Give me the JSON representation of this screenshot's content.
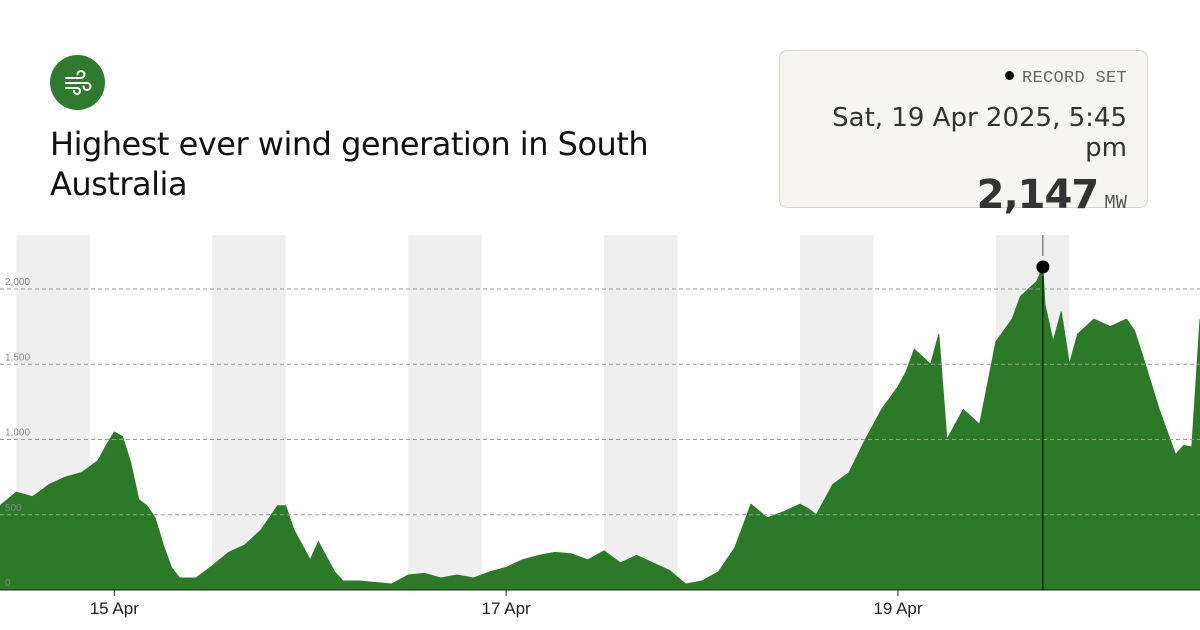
{
  "header": {
    "icon": "wind-icon",
    "icon_bg_color": "#2e7a2e",
    "title": "Highest ever wind generation in South Australia"
  },
  "record": {
    "label": "RECORD SET",
    "date": "Sat, 19 Apr 2025, 5:45 pm",
    "value": "2,147",
    "unit": "MW"
  },
  "chart_data": {
    "type": "area",
    "title": "",
    "xlabel": "",
    "ylabel": "",
    "series_color": "#2b7a27",
    "night_band_color": "#efefef",
    "grid": "dashed horizontal",
    "x_domain": [
      "2025-04-14T10:00",
      "2025-04-20T13:00"
    ],
    "ylim": [
      0,
      2400
    ],
    "y_ticks": [
      0,
      500,
      1000,
      1500,
      2000
    ],
    "y_tick_labels": [
      "0",
      "500",
      "1,000",
      "1,500",
      "2,000"
    ],
    "x_ticks": [
      {
        "x": "2025-04-15T00:00",
        "label": "15 Apr"
      },
      {
        "x": "2025-04-17T00:00",
        "label": "17 Apr"
      },
      {
        "x": "2025-04-19T00:00",
        "label": "19 Apr"
      }
    ],
    "night_bands": [
      [
        "2025-04-14T12:00",
        "2025-04-14T21:00"
      ],
      [
        "2025-04-15T12:00",
        "2025-04-15T21:00"
      ],
      [
        "2025-04-16T12:00",
        "2025-04-16T21:00"
      ],
      [
        "2025-04-17T12:00",
        "2025-04-17T21:00"
      ],
      [
        "2025-04-18T12:00",
        "2025-04-18T21:00"
      ],
      [
        "2025-04-19T12:00",
        "2025-04-19T21:00"
      ]
    ],
    "record_point": {
      "x": "2025-04-19T17:45",
      "y": 2147
    },
    "series": [
      {
        "x": [
          "2025-04-14T10:00",
          "2025-04-14T12:00",
          "2025-04-14T14:00",
          "2025-04-14T16:00",
          "2025-04-14T18:00",
          "2025-04-14T20:00",
          "2025-04-14T22:00",
          "2025-04-14T23:00",
          "2025-04-15T00:00",
          "2025-04-15T01:00",
          "2025-04-15T02:00",
          "2025-04-15T03:00",
          "2025-04-15T04:00",
          "2025-04-15T05:00",
          "2025-04-15T06:00",
          "2025-04-15T07:00",
          "2025-04-15T08:00",
          "2025-04-15T10:00",
          "2025-04-15T12:00",
          "2025-04-15T14:00",
          "2025-04-15T16:00",
          "2025-04-15T18:00",
          "2025-04-15T20:00",
          "2025-04-15T21:00",
          "2025-04-15T22:00",
          "2025-04-16T00:00",
          "2025-04-16T01:00",
          "2025-04-16T02:00",
          "2025-04-16T03:00",
          "2025-04-16T04:00",
          "2025-04-16T06:00",
          "2025-04-16T08:00",
          "2025-04-16T10:00",
          "2025-04-16T12:00",
          "2025-04-16T14:00",
          "2025-04-16T16:00",
          "2025-04-16T18:00",
          "2025-04-16T20:00",
          "2025-04-16T22:00",
          "2025-04-17T00:00",
          "2025-04-17T02:00",
          "2025-04-17T04:00",
          "2025-04-17T06:00",
          "2025-04-17T08:00",
          "2025-04-17T10:00",
          "2025-04-17T12:00",
          "2025-04-17T14:00",
          "2025-04-17T16:00",
          "2025-04-17T18:00",
          "2025-04-17T20:00",
          "2025-04-17T22:00",
          "2025-04-18T00:00",
          "2025-04-18T01:00",
          "2025-04-18T02:00",
          "2025-04-18T04:00",
          "2025-04-18T06:00",
          "2025-04-18T08:00",
          "2025-04-18T10:00",
          "2025-04-18T12:00",
          "2025-04-18T13:00",
          "2025-04-18T14:00",
          "2025-04-18T16:00",
          "2025-04-18T18:00",
          "2025-04-18T20:00",
          "2025-04-18T22:00",
          "2025-04-19T00:00",
          "2025-04-19T01:00",
          "2025-04-19T02:00",
          "2025-04-19T03:00",
          "2025-04-19T04:00",
          "2025-04-19T05:00",
          "2025-04-19T06:00",
          "2025-04-19T08:00",
          "2025-04-19T10:00",
          "2025-04-19T12:00",
          "2025-04-19T14:00",
          "2025-04-19T15:00",
          "2025-04-19T16:00",
          "2025-04-19T17:00",
          "2025-04-19T17:45",
          "2025-04-19T18:00",
          "2025-04-19T19:00",
          "2025-04-19T20:00",
          "2025-04-19T21:00",
          "2025-04-19T22:00",
          "2025-04-20T00:00",
          "2025-04-20T02:00",
          "2025-04-20T04:00",
          "2025-04-20T05:00",
          "2025-04-20T06:00",
          "2025-04-20T08:00",
          "2025-04-20T10:00",
          "2025-04-20T11:00",
          "2025-04-20T12:00",
          "2025-04-20T13:00"
        ],
        "values": [
          560,
          650,
          620,
          700,
          750,
          780,
          860,
          960,
          1050,
          1020,
          850,
          600,
          560,
          480,
          300,
          150,
          80,
          80,
          160,
          250,
          300,
          400,
          560,
          560,
          400,
          200,
          320,
          220,
          120,
          60,
          60,
          50,
          40,
          100,
          110,
          80,
          100,
          80,
          120,
          150,
          200,
          230,
          250,
          240,
          200,
          260,
          180,
          230,
          180,
          130,
          40,
          60,
          90,
          120,
          280,
          570,
          480,
          520,
          570,
          540,
          500,
          700,
          780,
          1000,
          1200,
          1350,
          1450,
          1600,
          1550,
          1500,
          1700,
          1000,
          1200,
          1100,
          1650,
          1800,
          1950,
          2000,
          2050,
          2147,
          1900,
          1650,
          1850,
          1500,
          1700,
          1800,
          1750,
          1800,
          1720,
          1550,
          1200,
          900,
          960,
          950,
          1800
        ]
      }
    ]
  }
}
